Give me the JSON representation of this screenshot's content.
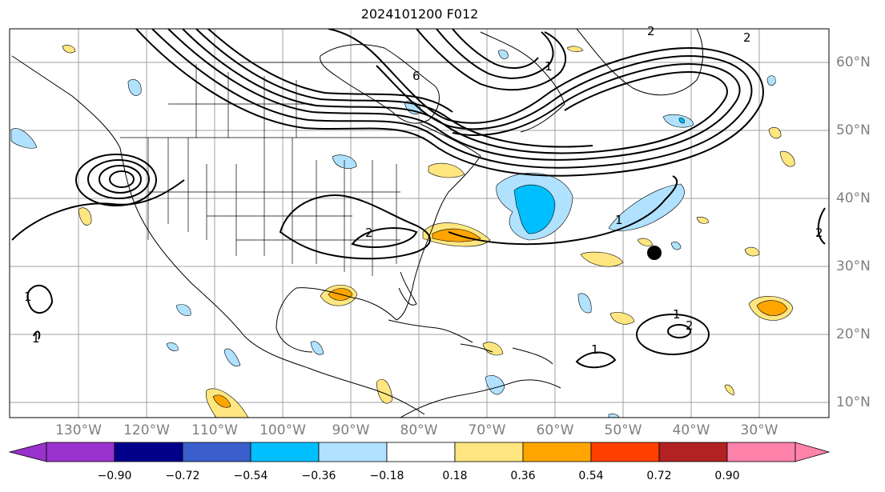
{
  "title": "2024101200 F012",
  "lon_labels": [
    "130°W",
    "120°W",
    "110°W",
    "100°W",
    "90°W",
    "80°W",
    "70°W",
    "60°W",
    "50°W",
    "40°W",
    "30°W"
  ],
  "lat_labels": [
    "60°N",
    "50°N",
    "40°N",
    "30°N",
    "20°N",
    "10°N"
  ],
  "colorbar": {
    "ticks": [
      "−0.90",
      "−0.72",
      "−0.54",
      "−0.36",
      "−0.18",
      "0.18",
      "0.36",
      "0.54",
      "0.72",
      "0.90"
    ],
    "colors": [
      "#9932cc",
      "#00008b",
      "#3a5fcd",
      "#00bfff",
      "#b0e2ff",
      "#ffffff",
      "#ffe680",
      "#ffa500",
      "#ff4000",
      "#b22222",
      "#ff82ab"
    ]
  },
  "contour_labels": [
    "1",
    "1",
    "1",
    "1",
    "1",
    "1",
    "2",
    "2",
    "2",
    "2",
    "2",
    "6"
  ],
  "marker": "filled-circle"
}
